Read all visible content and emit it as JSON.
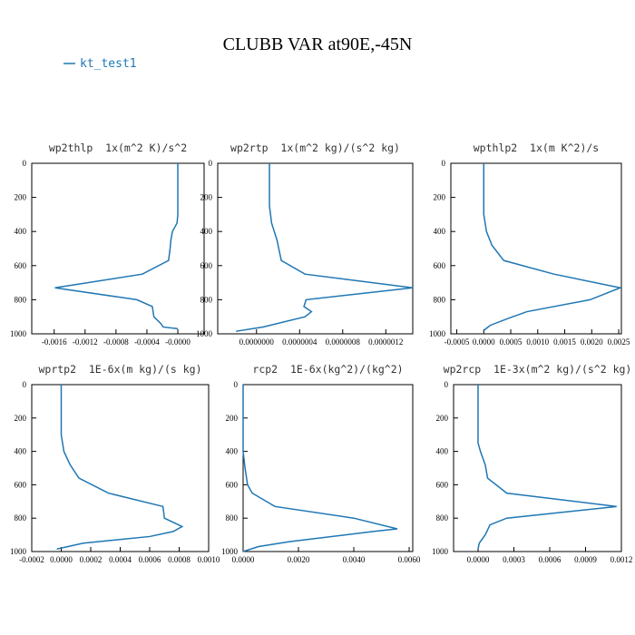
{
  "title": "CLUBB VAR at90E,-45N",
  "legend": {
    "name": "kt_test1",
    "color": "#1f77b4"
  },
  "chart_data": [
    {
      "type": "line",
      "title": "wp2thlp  1x(m^2 K)/s^2",
      "levels": [
        0,
        100,
        200,
        300,
        350,
        400,
        450,
        500,
        570,
        650,
        730,
        800,
        840,
        900,
        940,
        960,
        970
      ],
      "values": [
        0,
        0,
        0,
        0,
        -1e-05,
        -7e-05,
        -9e-05,
        -0.0001,
        -0.00012,
        -0.00046,
        -0.00159,
        -0.00053,
        -0.00033,
        -0.00031,
        -0.00022,
        -0.00019,
        0
      ],
      "xlim": [
        -0.00189,
        0.00034
      ],
      "xticks": [
        -0.0016,
        -0.0012,
        -0.0008,
        -0.0004,
        {
          "value": 0,
          "label": "-0.0000"
        }
      ],
      "ylim": [
        0,
        1000
      ],
      "yticks": [
        0,
        200,
        400,
        600,
        800,
        1000
      ],
      "y_inverted": true
    },
    {
      "type": "line",
      "title": "wp2rtp  1x(m^2 kg)/(s^2 kg)",
      "levels": [
        0,
        250,
        350,
        450,
        570,
        650,
        730,
        800,
        840,
        870,
        900,
        960,
        985
      ],
      "values": [
        1.2e-07,
        1.2e-07,
        1.4e-07,
        1.9e-07,
        2.3e-07,
        4.5e-07,
        1.45e-06,
        4.6e-07,
        4.4e-07,
        5.1e-07,
        4.5e-07,
        6e-08,
        -1.9e-07
      ],
      "xlim": [
        -3.6e-07,
        1.45e-06
      ],
      "xticks": [
        {
          "value": 0,
          "label": "0.0000000"
        },
        {
          "value": 4e-07,
          "label": "0.0000004"
        },
        {
          "value": 8e-07,
          "label": "0.0000008"
        },
        {
          "value": 1.2e-06,
          "label": "0.0000012"
        }
      ],
      "ylim": [
        0,
        1000
      ],
      "yticks": [
        0,
        200,
        400,
        600,
        800,
        1000
      ],
      "y_inverted": true
    },
    {
      "type": "line",
      "title": "wpthlp2  1x(m K^2)/s",
      "levels": [
        0,
        300,
        400,
        480,
        570,
        650,
        730,
        800,
        870,
        910,
        950,
        980
      ],
      "values": [
        0,
        0,
        5e-05,
        0.00015,
        0.00037,
        0.0013,
        0.00253,
        0.00197,
        0.0008,
        0.00045,
        0.00012,
        0
      ],
      "xlim": [
        -0.00061,
        0.00255
      ],
      "xticks": [
        -0.0005,
        {
          "value": 0,
          "label": "0.0000"
        },
        0.0005,
        {
          "value": 0.001,
          "label": "0.0010"
        },
        0.0015,
        {
          "value": 0.002,
          "label": "0.0020"
        },
        0.0025
      ],
      "ylim": [
        0,
        1000
      ],
      "yticks": [
        0,
        200,
        400,
        600,
        800,
        1000
      ],
      "y_inverted": true
    },
    {
      "type": "line",
      "title": "wprtp2  1E-6x(m kg)/(s kg)",
      "levels": [
        0,
        300,
        400,
        480,
        560,
        650,
        730,
        800,
        850,
        880,
        910,
        950,
        985
      ],
      "values": [
        0,
        0,
        1.8e-05,
        6e-05,
        0.00012,
        0.00032,
        0.00069,
        0.0007,
        0.00082,
        0.00076,
        0.0006,
        0.00015,
        -3e-05
      ],
      "xlim": [
        -0.0002,
        0.001
      ],
      "xticks": [
        -0.0002,
        {
          "value": 0,
          "label": "0.0000"
        },
        0.0002,
        0.0004,
        0.0006,
        0.0008,
        {
          "value": 0.001,
          "label": "0.0010"
        }
      ],
      "ylim": [
        0,
        1000
      ],
      "yticks": [
        0,
        200,
        400,
        600,
        800,
        1000
      ],
      "y_inverted": true
    },
    {
      "type": "line",
      "title": "rcp2  1E-6x(kg^2)/(kg^2)",
      "levels": [
        0,
        400,
        500,
        600,
        650,
        730,
        800,
        864,
        880,
        900,
        940,
        970,
        1000
      ],
      "values": [
        0,
        0,
        7e-05,
        0.00016,
        0.00033,
        0.00115,
        0.004,
        0.00557,
        0.0047,
        0.0037,
        0.0017,
        0.00056,
        0
      ],
      "xlim": [
        0,
        0.00613
      ],
      "xticks": [
        {
          "value": 0,
          "label": "0.0000"
        },
        {
          "value": 0.002,
          "label": "0.0020"
        },
        {
          "value": 0.004,
          "label": "0.0040"
        },
        {
          "value": 0.006,
          "label": "0.0060"
        }
      ],
      "ylim": [
        0,
        1000
      ],
      "yticks": [
        0,
        200,
        400,
        600,
        800,
        1000
      ],
      "y_inverted": true
    },
    {
      "type": "line",
      "title": "wp2rcp  1E-3x(m^2 kg)/(s^2 kg)",
      "levels": [
        0,
        350,
        400,
        480,
        560,
        650,
        730,
        800,
        840,
        870,
        900,
        950,
        985
      ],
      "values": [
        0,
        0,
        2e-05,
        6e-05,
        8e-05,
        0.00024,
        0.00116,
        0.00024,
        0.0001,
        8e-05,
        6e-05,
        1e-05,
        0
      ],
      "xlim": [
        -0.000205,
        0.0012
      ],
      "xticks": [
        {
          "value": 0,
          "label": "0.0000"
        },
        0.0003,
        0.0006,
        0.0009,
        0.0012
      ],
      "ylim": [
        0,
        1000
      ],
      "yticks": [
        0,
        200,
        400,
        600,
        800,
        1000
      ],
      "y_inverted": true
    }
  ]
}
